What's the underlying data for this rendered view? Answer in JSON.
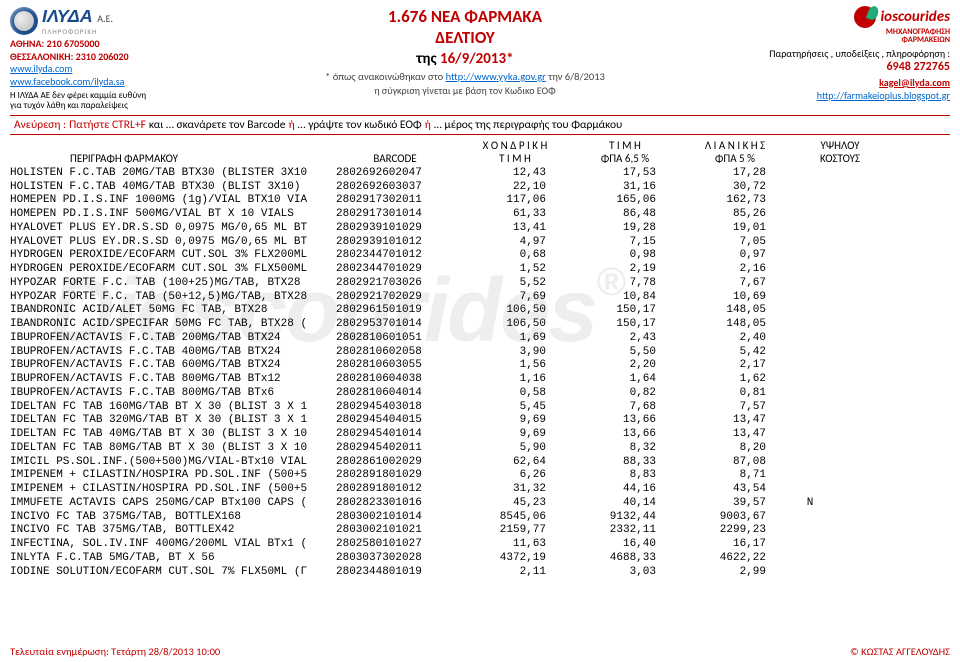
{
  "header": {
    "left": {
      "brand": "ΙΛΥΔΑ",
      "suffix": "A.E.",
      "tag": "ΠΛΗΡΟΦΟΡΙΚΗ",
      "athens": "ΑΘΗΝΑ: 210 6705000",
      "thess": "ΘΕΣΣΑΛΟΝΙΚΗ: 2310 206020",
      "url1": "www.ilyda.com",
      "url2": "www.facebook.com/ilyda.sa",
      "disc1": "Η ΙΛΥΔΑ ΑΕ δεν φέρει καμμία ευθύνη",
      "disc2": "για τυχόν λάθη και παραλείψεις"
    },
    "center": {
      "t1_a": "1.676 ΝΕΑ ΦΑΡΜΑΚΑ",
      "t1_b": "ΔΕΛΤΙΟΥ",
      "t2_a": "της ",
      "t2_b": "16/9/2013*",
      "sub_a": "* όπως ανακοινώθηκαν στο ",
      "sub_link": "http://www.yyka.gov.gr",
      "sub_b": " την 6/8/2013",
      "sub2": "η σύγκριση γίνεται με βάση τον Κωδικο ΕΟΦ"
    },
    "right": {
      "brand": "ioscourides",
      "tag1": "ΜΗΧΑΝΟΓΡΑΦΗΣΗ",
      "tag2": "ΦΑΡΜΑΚΕΙΩΝ",
      "line1": "Παρατηρήσεις , υποδείξεις , πληροφόρηση :",
      "tel": "6948 272765",
      "mail": "kagel@ilyda.com",
      "url": "http://farmakeioplus.blogspot.gr"
    }
  },
  "bar": {
    "a": "Ανεύρεση :",
    "b": "Πατήστε CTRL+F",
    "c": "και … σκανάρετε τον Barcode",
    "d": "ή",
    "e": "… γράψτε τον κωδικό ΕΟΦ",
    "f": "ή",
    "g": "… μέρος της περιγραφής του Φαρμάκου"
  },
  "thead": {
    "r1": {
      "c3": "Χ Ο Ν Δ Ρ Ι Κ Η",
      "c4": "Τ Ι Μ Η",
      "c5": "Λ Ι Α Ν Ι Κ Η Σ",
      "c6": "ΥΨΗΛΟΥ"
    },
    "r2": {
      "c1": "ΠΕΡΙΓΡΑΦΗ ΦΑΡΜΑΚΟΥ",
      "c2": "BARCODE",
      "c3": "Τ Ι Μ Η",
      "c4": "ΦΠΑ 6,5 %",
      "c5": "ΦΠΑ 5 %",
      "c6": "ΚΟΣΤΟΥΣ"
    }
  },
  "rows": [
    {
      "d": "HOLISTEN F.C.TAB 20MG/TAB BTX30 (BLISTER 3X10",
      "b": "2802692602047",
      "w": "12,43",
      "r65": "17,53",
      "r5": "17,28",
      "k": ""
    },
    {
      "d": "HOLISTEN F.C.TAB 40MG/TAB BTX30 (BLIST 3X10)",
      "b": "2802692603037",
      "w": "22,10",
      "r65": "31,16",
      "r5": "30,72",
      "k": ""
    },
    {
      "d": "HOMEPEN PD.I.S.INF 1000MG (1g)/VIAL BTX10 VIA",
      "b": "2802917302011",
      "w": "117,06",
      "r65": "165,06",
      "r5": "162,73",
      "k": ""
    },
    {
      "d": "HOMEPEN PD.I.S.INF 500MG/VIAL BT X 10 VIALS",
      "b": "2802917301014",
      "w": "61,33",
      "r65": "86,48",
      "r5": "85,26",
      "k": ""
    },
    {
      "d": "HYALOVET PLUS EY.DR.S.SD 0,0975 MG/0,65 ML BT",
      "b": "2802939101029",
      "w": "13,41",
      "r65": "19,28",
      "r5": "19,01",
      "k": ""
    },
    {
      "d": "HYALOVET PLUS EY.DR.S.SD 0,0975 MG/0,65 ML BT",
      "b": "2802939101012",
      "w": "4,97",
      "r65": "7,15",
      "r5": "7,05",
      "k": ""
    },
    {
      "d": "HYDROGEN PEROXIDE/ECOFARM CUT.SOL 3% FLX200ML",
      "b": "2802344701012",
      "w": "0,68",
      "r65": "0,98",
      "r5": "0,97",
      "k": ""
    },
    {
      "d": "HYDROGEN PEROXIDE/ECOFARM CUT.SOL 3% FLX500ML",
      "b": "2802344701029",
      "w": "1,52",
      "r65": "2,19",
      "r5": "2,16",
      "k": ""
    },
    {
      "d": "HYPOZAR FORTE F.C. TAB (100+25)MG/TAB, BTX28",
      "b": "2802921703026",
      "w": "5,52",
      "r65": "7,78",
      "r5": "7,67",
      "k": ""
    },
    {
      "d": "HYPOZAR FORTE F.C. TAB (50+12,5)MG/TAB, BTX28",
      "b": "2802921702029",
      "w": "7,69",
      "r65": "10,84",
      "r5": "10,69",
      "k": ""
    },
    {
      "d": "IBANDRONIC ACID/ALET 50MG FC TAB, BTX28",
      "b": "2802961501019",
      "w": "106,50",
      "r65": "150,17",
      "r5": "148,05",
      "k": ""
    },
    {
      "d": "IBANDRONIC ACID/SPECIFAR 50MG FC TAB, BTX28 (",
      "b": "2802953701014",
      "w": "106,50",
      "r65": "150,17",
      "r5": "148,05",
      "k": ""
    },
    {
      "d": "IBUPROFEN/ACTAVIS F.C.TAB 200MG/TAB BTX24",
      "b": "2802810601051",
      "w": "1,69",
      "r65": "2,43",
      "r5": "2,40",
      "k": ""
    },
    {
      "d": "IBUPROFEN/ACTAVIS F.C.TAB 400MG/TAB BTX24",
      "b": "2802810602058",
      "w": "3,90",
      "r65": "5,50",
      "r5": "5,42",
      "k": ""
    },
    {
      "d": "IBUPROFEN/ACTAVIS F.C.TAB 600MG/TAB BTX24",
      "b": "2802810603055",
      "w": "1,56",
      "r65": "2,20",
      "r5": "2,17",
      "k": ""
    },
    {
      "d": "IBUPROFEN/ACTAVIS F.C.TAB 800MG/TAB BTx12",
      "b": "2802810604038",
      "w": "1,16",
      "r65": "1,64",
      "r5": "1,62",
      "k": ""
    },
    {
      "d": "IBUPROFEN/ACTAVIS F.C.TAB 800MG/TAB BTx6",
      "b": "2802810604014",
      "w": "0,58",
      "r65": "0,82",
      "r5": "0,81",
      "k": ""
    },
    {
      "d": "IDELTAN FC TAB 160MG/TAB BT X 30 (BLIST 3 X 1",
      "b": "2802945403018",
      "w": "5,45",
      "r65": "7,68",
      "r5": "7,57",
      "k": ""
    },
    {
      "d": "IDELTAN FC TAB 320MG/TAB BT X 30 (BLIST 3 X 1",
      "b": "2802945404015",
      "w": "9,69",
      "r65": "13,66",
      "r5": "13,47",
      "k": ""
    },
    {
      "d": "IDELTAN FC TAB 40MG/TAB BT X 30 (BLIST 3 X 10",
      "b": "2802945401014",
      "w": "9,69",
      "r65": "13,66",
      "r5": "13,47",
      "k": ""
    },
    {
      "d": "IDELTAN FC TAB 80MG/TAB BT X 30 (BLIST 3 X 10",
      "b": "2802945402011",
      "w": "5,90",
      "r65": "8,32",
      "r5": "8,20",
      "k": ""
    },
    {
      "d": "IMICIL PS.SOL.INF.(500+500)MG/VIAL-BTx10 VIAL",
      "b": "2802861002029",
      "w": "62,64",
      "r65": "88,33",
      "r5": "87,08",
      "k": ""
    },
    {
      "d": "IMIPENEM + CILASTIN/HOSPIRA PD.SOL.INF (500+5",
      "b": "2802891801029",
      "w": "6,26",
      "r65": "8,83",
      "r5": "8,71",
      "k": ""
    },
    {
      "d": "IMIPENEM + CILASTIN/HOSPIRA PD.SOL.INF (500+5",
      "b": "2802891801012",
      "w": "31,32",
      "r65": "44,16",
      "r5": "43,54",
      "k": ""
    },
    {
      "d": "IMMUFETE ACTAVIS CAPS 250MG/CAP BTx100 CAPS (",
      "b": "2802823301016",
      "w": "45,23",
      "r65": "40,14",
      "r5": "39,57",
      "k": "Ν"
    },
    {
      "d": "INCIVO FC TAB 375MG/TAB, BOTTLEX168",
      "b": "2803002101014",
      "w": "8545,06",
      "r65": "9132,44",
      "r5": "9003,67",
      "k": ""
    },
    {
      "d": "INCIVO FC TAB 375MG/TAB, BOTTLEX42",
      "b": "2803002101021",
      "w": "2159,77",
      "r65": "2332,11",
      "r5": "2299,23",
      "k": ""
    },
    {
      "d": "INFECTINA, SOL.IV.INF 400MG/200ML VIAL BTx1 (",
      "b": "2802580101027",
      "w": "11,63",
      "r65": "16,40",
      "r5": "16,17",
      "k": ""
    },
    {
      "d": "INLYTA F.C.TAB 5MG/TAB, BT X 56",
      "b": "2803037302028",
      "w": "4372,19",
      "r65": "4688,33",
      "r5": "4622,22",
      "k": ""
    },
    {
      "d": "IODINE SOLUTION/ECOFARM CUT.SOL 7% FLX50ML (Γ",
      "b": "2802344801019",
      "w": "2,11",
      "r65": "3,03",
      "r5": "2,99",
      "k": ""
    }
  ],
  "footer": {
    "left": "Τελευταία ενημέρωση: Τετάρτη 28/8/2013  10:00",
    "right": "© ΚΩΣΤΑΣ ΑΓΓΕΛΟΥΔΗΣ"
  },
  "watermark": "Dioscourides"
}
